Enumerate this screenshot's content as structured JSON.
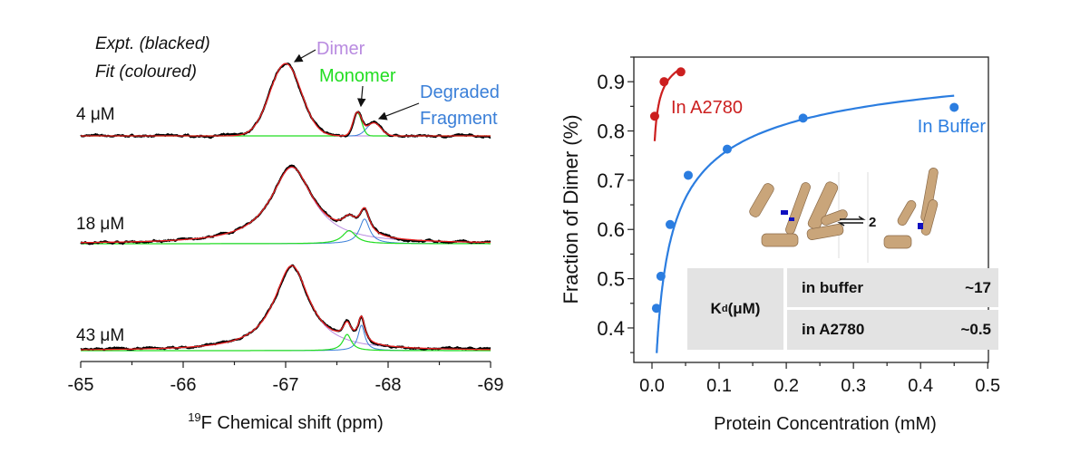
{
  "chart_data": [
    {
      "type": "line",
      "xlabel_sup": "19",
      "xlabel": "F Chemical shift (ppm)",
      "xlim": [
        -65,
        -69
      ],
      "x_reversed": true,
      "xticks": [
        "-65",
        "-66",
        "-67",
        "-68",
        "-69"
      ],
      "xtick_values": [
        -65,
        -66,
        -67,
        -68,
        -69
      ],
      "yaxis_shown": false,
      "legend_lines": [
        "Expt. (blacked)",
        "Fit (coloured)"
      ],
      "annotations": {
        "dimer": "Dimer",
        "monomer": "Monomer",
        "fragment_1": "Degraded",
        "fragment_2": "Fragment"
      },
      "colors": {
        "expt": "#000000",
        "fit": "#e82020",
        "dimer": "#b98be0",
        "monomer": "#22dd22",
        "fragment": "#3a7fd8"
      },
      "spectra": [
        {
          "label": "4 μM",
          "components": {
            "dimer": {
              "center": -67.0,
              "fwhm": 0.36,
              "amp": 0.94,
              "shape": "gaussian"
            },
            "monomer": {
              "center": -67.7,
              "fwhm": 0.1,
              "amp": 0.3,
              "shape": "gaussian"
            },
            "fragment": {
              "center": -67.86,
              "fwhm": 0.16,
              "amp": 0.17,
              "shape": "gaussian"
            }
          }
        },
        {
          "label": "18 μM",
          "components": {
            "dimer": {
              "center": -67.06,
              "fwhm": 0.5,
              "amp": 0.99,
              "shape": "lorentzian"
            },
            "monomer": {
              "center": -67.62,
              "fwhm": 0.16,
              "amp": 0.17,
              "shape": "lorentzian"
            },
            "fragment": {
              "center": -67.77,
              "fwhm": 0.12,
              "amp": 0.32,
              "shape": "lorentzian"
            }
          }
        },
        {
          "label": "43 μM",
          "components": {
            "dimer": {
              "center": -67.06,
              "fwhm": 0.42,
              "amp": 1.1,
              "shape": "lorentzian"
            },
            "monomer": {
              "center": -67.6,
              "fwhm": 0.1,
              "amp": 0.21,
              "shape": "lorentzian"
            },
            "fragment": {
              "center": -67.74,
              "fwhm": 0.08,
              "amp": 0.33,
              "shape": "lorentzian"
            }
          }
        }
      ]
    },
    {
      "type": "scatter",
      "xlabel": "Protein Concentration (mM)",
      "ylabel": "Fraction of Dimer (%)",
      "xlim": [
        -0.027,
        0.501
      ],
      "ylim": [
        0.33,
        0.95
      ],
      "xticks": [
        "0.0",
        "0.1",
        "0.2",
        "0.3",
        "0.4",
        "0.5"
      ],
      "xtick_values": [
        0,
        0.1,
        0.2,
        0.3,
        0.4,
        0.5
      ],
      "yticks": [
        "0.4",
        "0.5",
        "0.6",
        "0.7",
        "0.8",
        "0.9"
      ],
      "ytick_values": [
        0.4,
        0.5,
        0.6,
        0.7,
        0.8,
        0.9
      ],
      "grid": false,
      "series": [
        {
          "name": "In Buffer",
          "color": "#2b7de0",
          "x": [
            0.0066,
            0.0133,
            0.027,
            0.054,
            0.112,
            0.225,
            0.45
          ],
          "y": [
            0.44,
            0.505,
            0.61,
            0.71,
            0.763,
            0.826,
            0.848
          ],
          "fit_kd_mM": 0.017,
          "fit_range": [
            0.007,
            0.45
          ]
        },
        {
          "name": "In A2780",
          "color": "#cc1f1f",
          "x": [
            0.004,
            0.018,
            0.043
          ],
          "y": [
            0.83,
            0.9,
            0.92
          ],
          "fit_kd_mM": 0.0005,
          "fit_range": [
            0.004,
            0.043
          ]
        }
      ],
      "inset": {
        "equilibrium": "2",
        "table": {
          "header": "K",
          "header_sub": "d",
          "header_unit": " (μM)",
          "rows": [
            {
              "label": "in buffer",
              "value": "~17"
            },
            {
              "label": "in A2780",
              "value": "~0.5"
            }
          ]
        }
      }
    }
  ]
}
